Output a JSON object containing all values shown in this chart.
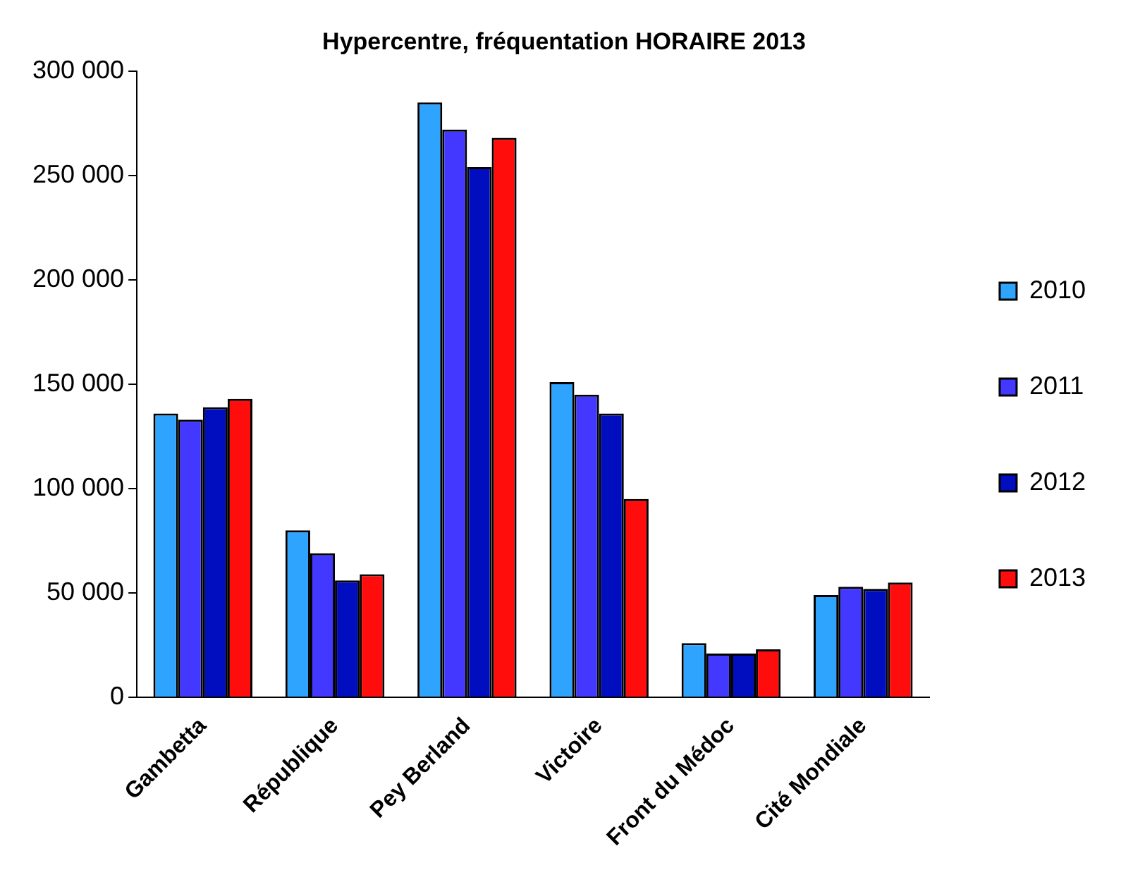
{
  "chart_data": {
    "type": "bar",
    "title": "Hypercentre, fréquentation HORAIRE 2013",
    "categories": [
      "Gambetta",
      "République",
      "Pey Berland",
      "Victoire",
      "Front du Médoc",
      "Cité Mondiale"
    ],
    "series": [
      {
        "name": "2010",
        "color": "#2ea4ff",
        "values": [
          136000,
          80000,
          285000,
          151000,
          26000,
          49000
        ]
      },
      {
        "name": "2011",
        "color": "#4338ff",
        "values": [
          133000,
          69000,
          272000,
          145000,
          21000,
          53000
        ]
      },
      {
        "name": "2012",
        "color": "#000ebf",
        "values": [
          139000,
          56000,
          254000,
          136000,
          21000,
          52000
        ]
      },
      {
        "name": "2013",
        "color": "#ff0d0d",
        "values": [
          143000,
          59000,
          268000,
          95000,
          23000,
          55000
        ]
      }
    ],
    "ylim": [
      0,
      300000
    ],
    "yticks": [
      0,
      {
        "value": 50000,
        "label": "50 000"
      },
      {
        "value": 100000,
        "label": "100 000"
      },
      {
        "value": 150000,
        "label": "150 000"
      },
      {
        "value": 200000,
        "label": "200 000"
      },
      {
        "value": 250000,
        "label": "250 000"
      },
      {
        "value": 300000,
        "label": "300 000"
      }
    ],
    "grid": false,
    "legend": "right"
  }
}
